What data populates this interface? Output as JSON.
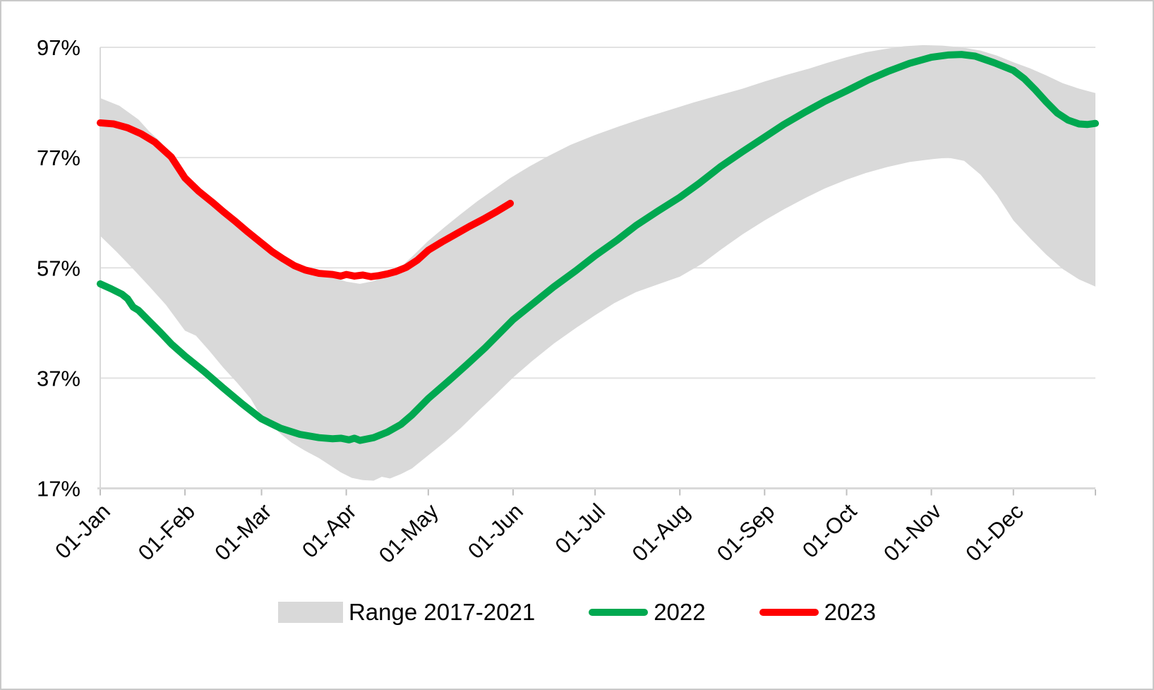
{
  "figure": {
    "background": "#ffffff",
    "border_color": "#c9c9c9",
    "grid_color": "#e2e2e2",
    "axis_color": "#d9d9d9",
    "tick_color": "#bfbfbf",
    "text_color": "#000000"
  },
  "legend": {
    "items": [
      {
        "label": "Range 2017-2021",
        "type": "band",
        "color": "#d9d9d9"
      },
      {
        "label": "2022",
        "type": "line",
        "color": "#00a850"
      },
      {
        "label": "2023",
        "type": "line",
        "color": "#ff0000"
      }
    ]
  },
  "chart_data": {
    "type": "line",
    "title": "",
    "xlabel": "",
    "ylabel": "",
    "x_unit": "day_of_year",
    "ylim": [
      17,
      97
    ],
    "grid": true,
    "legend_position": "bottom",
    "y_axis": {
      "tick_labels": [
        "97%",
        "77%",
        "57%",
        "37%",
        "17%"
      ],
      "tick_values": [
        97,
        77,
        57,
        37,
        17
      ]
    },
    "x_axis": {
      "tick_labels": [
        "01-Jan",
        "01-Feb",
        "01-Mar",
        "01-Apr",
        "01-May",
        "01-Jun",
        "01-Jul",
        "01-Aug",
        "01-Sep",
        "01-Oct",
        "01-Nov",
        "01-Dec"
      ],
      "tick_days": [
        0,
        31,
        59,
        90,
        120,
        151,
        181,
        212,
        243,
        273,
        304,
        334
      ],
      "end_tick_day": 364,
      "label_rotation_deg": -45
    },
    "series": [
      {
        "name": "Range 2017-2021",
        "role": "band",
        "color": "#d9d9d9",
        "upper": [
          [
            0,
            87.8
          ],
          [
            7,
            86.4
          ],
          [
            14,
            83.9
          ],
          [
            18,
            81.7
          ],
          [
            22,
            79.9
          ],
          [
            26,
            77.6
          ],
          [
            31,
            73.9
          ],
          [
            38,
            70.6
          ],
          [
            45,
            67.6
          ],
          [
            52,
            64.6
          ],
          [
            59,
            61.9
          ],
          [
            66,
            59.3
          ],
          [
            73,
            57.6
          ],
          [
            80,
            56.3
          ],
          [
            85,
            55.3
          ],
          [
            90,
            54.5
          ],
          [
            95,
            54.1
          ],
          [
            100,
            54.6
          ],
          [
            105,
            55.7
          ],
          [
            110,
            57.2
          ],
          [
            114,
            59.0
          ],
          [
            120,
            61.9
          ],
          [
            126,
            64.4
          ],
          [
            132,
            66.8
          ],
          [
            138,
            69.1
          ],
          [
            144,
            71.2
          ],
          [
            150,
            73.3
          ],
          [
            157,
            75.4
          ],
          [
            164,
            77.3
          ],
          [
            172,
            79.3
          ],
          [
            181,
            81.1
          ],
          [
            190,
            82.7
          ],
          [
            199,
            84.2
          ],
          [
            208,
            85.6
          ],
          [
            217,
            87.0
          ],
          [
            227,
            88.4
          ],
          [
            235,
            89.5
          ],
          [
            243,
            90.8
          ],
          [
            251,
            92.0
          ],
          [
            259,
            93.1
          ],
          [
            266,
            94.2
          ],
          [
            273,
            95.2
          ],
          [
            280,
            96.1
          ],
          [
            287,
            96.7
          ],
          [
            294,
            97.2
          ],
          [
            301,
            97.4
          ],
          [
            308,
            97.3
          ],
          [
            315,
            97.0
          ],
          [
            322,
            96.4
          ],
          [
            328,
            95.5
          ],
          [
            334,
            94.3
          ],
          [
            340,
            93.2
          ],
          [
            346,
            91.9
          ],
          [
            352,
            90.5
          ],
          [
            358,
            89.5
          ],
          [
            364,
            88.7
          ]
        ],
        "lower": [
          [
            0,
            62.8
          ],
          [
            6,
            59.9
          ],
          [
            12,
            56.8
          ],
          [
            18,
            53.6
          ],
          [
            24,
            50.3
          ],
          [
            31,
            45.6
          ],
          [
            35,
            44.7
          ],
          [
            40,
            41.9
          ],
          [
            45,
            38.9
          ],
          [
            50,
            36.2
          ],
          [
            55,
            33.3
          ],
          [
            59,
            29.9
          ],
          [
            63,
            28.3
          ],
          [
            66,
            26.9
          ],
          [
            70,
            25.3
          ],
          [
            75,
            23.8
          ],
          [
            80,
            22.5
          ],
          [
            84,
            21.2
          ],
          [
            88,
            19.9
          ],
          [
            92,
            18.9
          ],
          [
            96,
            18.5
          ],
          [
            100,
            18.4
          ],
          [
            103,
            19.1
          ],
          [
            106,
            18.8
          ],
          [
            110,
            19.6
          ],
          [
            114,
            20.6
          ],
          [
            120,
            23.0
          ],
          [
            126,
            25.4
          ],
          [
            132,
            28.0
          ],
          [
            138,
            30.9
          ],
          [
            144,
            33.7
          ],
          [
            151,
            37.1
          ],
          [
            158,
            40.1
          ],
          [
            166,
            43.3
          ],
          [
            174,
            46.1
          ],
          [
            181,
            48.4
          ],
          [
            188,
            50.6
          ],
          [
            196,
            52.6
          ],
          [
            204,
            54.0
          ],
          [
            212,
            55.4
          ],
          [
            220,
            57.7
          ],
          [
            227,
            60.3
          ],
          [
            235,
            63.1
          ],
          [
            243,
            65.6
          ],
          [
            250,
            67.6
          ],
          [
            258,
            69.7
          ],
          [
            265,
            71.4
          ],
          [
            273,
            73.0
          ],
          [
            280,
            74.2
          ],
          [
            288,
            75.3
          ],
          [
            296,
            76.2
          ],
          [
            304,
            76.7
          ],
          [
            310,
            77.0
          ],
          [
            316,
            76.4
          ],
          [
            322,
            73.9
          ],
          [
            328,
            70.2
          ],
          [
            334,
            65.6
          ],
          [
            340,
            62.4
          ],
          [
            346,
            59.4
          ],
          [
            352,
            56.8
          ],
          [
            358,
            54.9
          ],
          [
            364,
            53.6
          ]
        ]
      },
      {
        "name": "2022",
        "role": "line",
        "color": "#00a850",
        "points": [
          [
            0,
            54.1
          ],
          [
            4,
            53.2
          ],
          [
            8,
            52.2
          ],
          [
            10,
            51.4
          ],
          [
            12,
            49.9
          ],
          [
            14,
            49.3
          ],
          [
            18,
            47.3
          ],
          [
            22,
            45.3
          ],
          [
            26,
            43.2
          ],
          [
            31,
            41.0
          ],
          [
            38,
            38.2
          ],
          [
            45,
            35.2
          ],
          [
            52,
            32.3
          ],
          [
            59,
            29.6
          ],
          [
            66,
            27.9
          ],
          [
            73,
            26.8
          ],
          [
            80,
            26.2
          ],
          [
            85,
            26.0
          ],
          [
            88,
            26.1
          ],
          [
            91,
            25.8
          ],
          [
            93,
            26.1
          ],
          [
            95,
            25.7
          ],
          [
            100,
            26.2
          ],
          [
            105,
            27.2
          ],
          [
            110,
            28.6
          ],
          [
            114,
            30.3
          ],
          [
            120,
            33.3
          ],
          [
            127,
            36.3
          ],
          [
            134,
            39.4
          ],
          [
            141,
            42.6
          ],
          [
            146,
            45.1
          ],
          [
            151,
            47.6
          ],
          [
            158,
            50.4
          ],
          [
            166,
            53.6
          ],
          [
            174,
            56.5
          ],
          [
            181,
            59.2
          ],
          [
            189,
            62.0
          ],
          [
            196,
            64.7
          ],
          [
            204,
            67.3
          ],
          [
            212,
            69.8
          ],
          [
            219,
            72.3
          ],
          [
            227,
            75.4
          ],
          [
            235,
            78.1
          ],
          [
            243,
            80.7
          ],
          [
            250,
            83.0
          ],
          [
            258,
            85.3
          ],
          [
            265,
            87.2
          ],
          [
            273,
            89.1
          ],
          [
            281,
            91.1
          ],
          [
            288,
            92.6
          ],
          [
            296,
            94.1
          ],
          [
            304,
            95.2
          ],
          [
            310,
            95.6
          ],
          [
            315,
            95.7
          ],
          [
            320,
            95.4
          ],
          [
            327,
            94.2
          ],
          [
            334,
            92.8
          ],
          [
            338,
            91.3
          ],
          [
            342,
            89.3
          ],
          [
            346,
            87.1
          ],
          [
            350,
            85.1
          ],
          [
            354,
            83.8
          ],
          [
            358,
            83.1
          ],
          [
            361,
            83.0
          ],
          [
            364,
            83.2
          ]
        ]
      },
      {
        "name": "2023",
        "role": "line",
        "color": "#ff0000",
        "points": [
          [
            0,
            83.3
          ],
          [
            5,
            83.1
          ],
          [
            10,
            82.4
          ],
          [
            15,
            81.3
          ],
          [
            20,
            79.8
          ],
          [
            26,
            77.1
          ],
          [
            31,
            73.3
          ],
          [
            36,
            70.9
          ],
          [
            41,
            68.9
          ],
          [
            45,
            67.2
          ],
          [
            49,
            65.6
          ],
          [
            54,
            63.5
          ],
          [
            59,
            61.5
          ],
          [
            63,
            59.9
          ],
          [
            67,
            58.6
          ],
          [
            71,
            57.4
          ],
          [
            75,
            56.6
          ],
          [
            80,
            56.0
          ],
          [
            85,
            55.8
          ],
          [
            88,
            55.5
          ],
          [
            90,
            55.8
          ],
          [
            93,
            55.5
          ],
          [
            96,
            55.7
          ],
          [
            99,
            55.4
          ],
          [
            102,
            55.6
          ],
          [
            105,
            55.9
          ],
          [
            108,
            56.3
          ],
          [
            112,
            57.1
          ],
          [
            116,
            58.4
          ],
          [
            120,
            60.2
          ],
          [
            125,
            61.7
          ],
          [
            130,
            63.1
          ],
          [
            135,
            64.5
          ],
          [
            140,
            65.8
          ],
          [
            145,
            67.2
          ],
          [
            150,
            68.7
          ]
        ]
      }
    ]
  }
}
